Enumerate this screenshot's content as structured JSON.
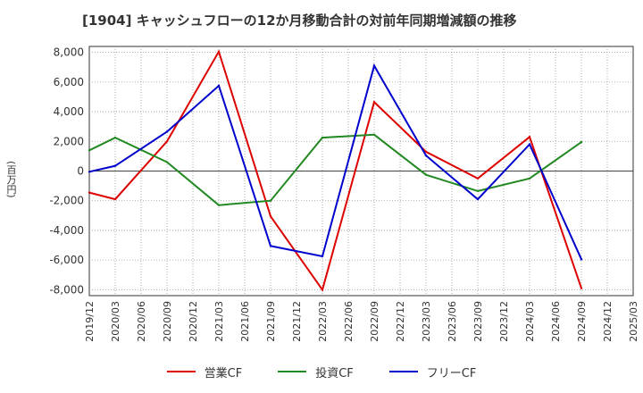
{
  "title": "[1904]  キャッシュフローの12か月移動合計の対前年同期増減額の推移",
  "ylabel": "(百万円)",
  "chart_data": {
    "type": "line",
    "title": "[1904]  キャッシュフローの12か月移動合計の対前年同期増減額の推移",
    "ylabel": "(百万円)",
    "xlabel": "",
    "ylim": [
      -8400,
      8400
    ],
    "yticks": [
      8000,
      6000,
      4000,
      2000,
      0,
      -2000,
      -4000,
      -6000,
      -8000
    ],
    "ytick_labels": [
      "8,000",
      "6,000",
      "4,000",
      "2,000",
      "0",
      "-2,000",
      "-4,000",
      "-6,000",
      "-8,000"
    ],
    "categories": [
      "2019/12",
      "2020/03",
      "2020/06",
      "2020/09",
      "2020/12",
      "2021/03",
      "2021/06",
      "2021/09",
      "2021/12",
      "2022/03",
      "2022/06",
      "2022/09",
      "2022/12",
      "2023/03",
      "2023/06",
      "2023/09",
      "2023/12",
      "2024/03",
      "2024/06",
      "2024/09",
      "2024/12",
      "2025/03"
    ],
    "grid": true,
    "legend_position": "bottom",
    "series": [
      {
        "name": "営業CF",
        "color": "#dd0000",
        "values": [
          -1450,
          -1900,
          null,
          2000,
          null,
          8050,
          null,
          -3050,
          null,
          -8000,
          null,
          4650,
          null,
          1300,
          null,
          -500,
          null,
          2300,
          null,
          -7900,
          null,
          null
        ]
      },
      {
        "name": "投資CF",
        "color": "#228822",
        "values": [
          1400,
          2250,
          null,
          600,
          null,
          -2300,
          null,
          -2000,
          null,
          2250,
          null,
          2450,
          null,
          -250,
          null,
          -1350,
          null,
          -500,
          null,
          1950,
          null,
          null
        ]
      },
      {
        "name": "フリーCF",
        "color": "#0000cc",
        "values": [
          -50,
          350,
          null,
          2650,
          null,
          5750,
          null,
          -5050,
          null,
          -5750,
          null,
          7100,
          null,
          1050,
          null,
          -1900,
          null,
          1800,
          null,
          -5950,
          null,
          null
        ]
      }
    ]
  }
}
